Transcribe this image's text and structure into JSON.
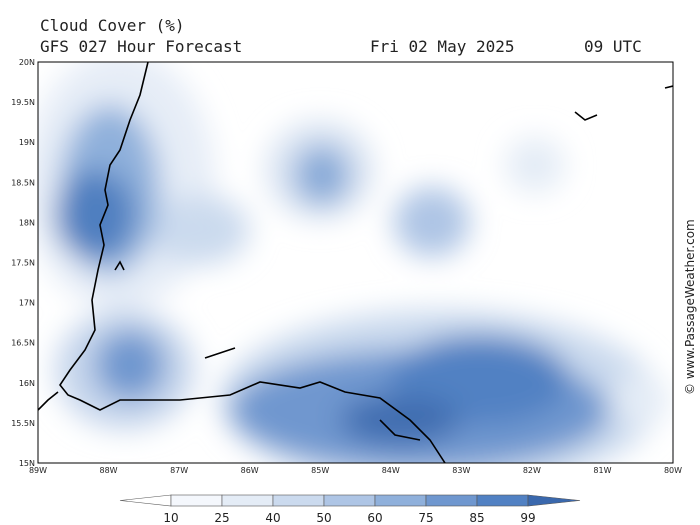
{
  "header": {
    "title": "Cloud Cover (%)",
    "subtitle": "GFS 027 Hour Forecast",
    "date": "Fri 02 May 2025",
    "time": "09 UTC"
  },
  "map": {
    "lat_labels": [
      "20N",
      "19.5N",
      "19N",
      "18.5N",
      "18N",
      "17.5N",
      "17N",
      "16.5N",
      "16N",
      "15.5N",
      "15N"
    ],
    "lon_labels": [
      "89W",
      "88W",
      "87W",
      "86W",
      "85W",
      "84W",
      "83W",
      "82W",
      "81W",
      "80W"
    ]
  },
  "legend": {
    "ticks": [
      10,
      25,
      40,
      50,
      60,
      75,
      85,
      99
    ]
  },
  "watermark": "© www.PassageWeather.com"
}
